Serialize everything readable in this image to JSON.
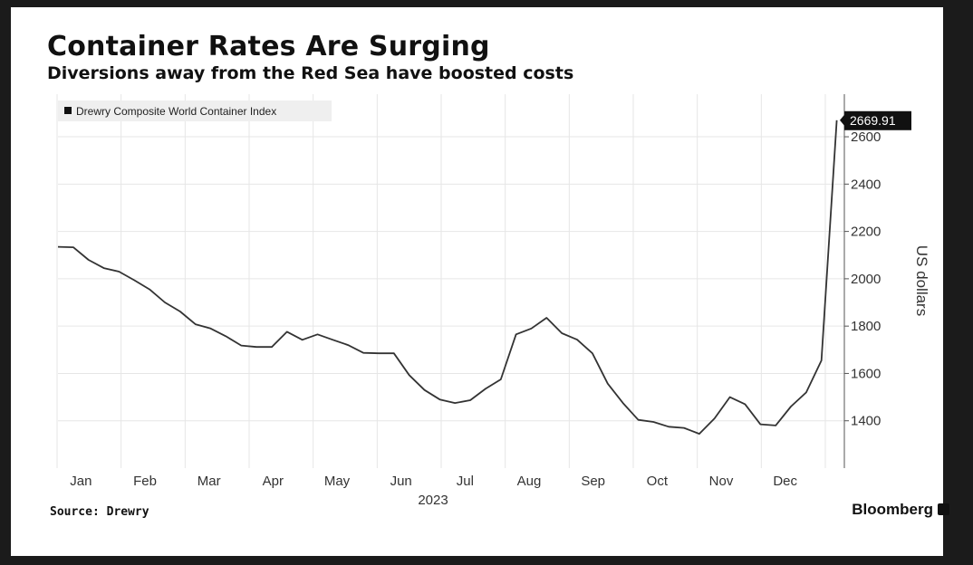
{
  "header": {
    "title": "Container Rates Are Surging",
    "subtitle": "Diversions away from the Red Sea have boosted costs"
  },
  "footer": {
    "source": "Source: Drewry",
    "brand": "Bloomberg"
  },
  "colors": {
    "line": "#333333",
    "grid": "#e6e6e6",
    "label_bg": "#111111",
    "background": "#ffffff"
  },
  "chart_data": {
    "type": "line",
    "title": "Container Rates Are Surging",
    "subtitle": "Diversions away from the Red Sea have boosted costs",
    "ylabel": "US dollars",
    "xlabel": "2023",
    "legend": {
      "placement": "top-left",
      "entries": [
        "Drewry Composite World Container Index"
      ]
    },
    "ylim": [
      1200,
      2780
    ],
    "yticks": [
      1400,
      1600,
      1800,
      2000,
      2200,
      2400,
      2600
    ],
    "xticks": [
      "Jan",
      "Feb",
      "Mar",
      "Apr",
      "May",
      "Jun",
      "Jul",
      "Aug",
      "Sep",
      "Oct",
      "Nov",
      "Dec"
    ],
    "xlim": [
      0,
      51.5
    ],
    "grid": true,
    "last_value_label": "2669.91",
    "series": [
      {
        "name": "Drewry Composite World Container Index",
        "x": [
          0,
          1,
          2,
          3,
          4,
          5,
          6,
          7,
          8,
          9,
          10,
          11,
          12,
          13,
          14,
          15,
          16,
          17,
          18,
          19,
          20,
          21,
          22,
          23,
          24,
          25,
          26,
          27,
          28,
          29,
          30,
          31,
          32,
          33,
          34,
          35,
          36,
          37,
          38,
          39,
          40,
          41,
          42,
          43,
          44,
          45,
          46,
          47,
          48,
          49,
          50,
          51
        ],
        "values": [
          2135,
          2133,
          2080,
          2045,
          2030,
          1994,
          1955,
          1900,
          1862,
          1808,
          1790,
          1757,
          1718,
          1712,
          1712,
          1776,
          1742,
          1765,
          1742,
          1720,
          1687,
          1685,
          1685,
          1593,
          1530,
          1490,
          1475,
          1487,
          1535,
          1575,
          1765,
          1790,
          1835,
          1770,
          1743,
          1685,
          1557,
          1475,
          1404,
          1395,
          1375,
          1370,
          1345,
          1410,
          1500,
          1470,
          1385,
          1380,
          1460,
          1520,
          1655,
          2669.91
        ]
      }
    ]
  }
}
